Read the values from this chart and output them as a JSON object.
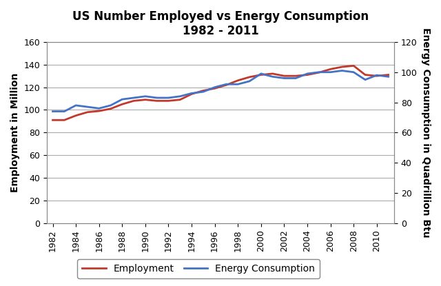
{
  "title": "US Number Employed vs Energy Consumption\n1982 - 2011",
  "ylabel_left": "Employment in Million",
  "ylabel_right": "Energy Consumption in Quadrillion Btu",
  "years": [
    1982,
    1983,
    1984,
    1985,
    1986,
    1987,
    1988,
    1989,
    1990,
    1991,
    1992,
    1993,
    1994,
    1995,
    1996,
    1997,
    1998,
    1999,
    2000,
    2001,
    2002,
    2003,
    2004,
    2005,
    2006,
    2007,
    2008,
    2009,
    2010,
    2011
  ],
  "employment": [
    91,
    91,
    95,
    98,
    99,
    101,
    105,
    108,
    109,
    108,
    108,
    109,
    114,
    117,
    119,
    122,
    126,
    129,
    131,
    132,
    130,
    130,
    131,
    133,
    136,
    138,
    139,
    131,
    130,
    131
  ],
  "energy": [
    74,
    74,
    78,
    77,
    76,
    78,
    82,
    83,
    84,
    83,
    83,
    84,
    86,
    87,
    90,
    92,
    92,
    94,
    99,
    97,
    96,
    96,
    99,
    100,
    100,
    101,
    100,
    95,
    98,
    97
  ],
  "employment_color": "#c0392b",
  "energy_color": "#4472c4",
  "ylim_left": [
    0,
    160
  ],
  "ylim_right": [
    0,
    120
  ],
  "yticks_left": [
    0,
    20,
    40,
    60,
    80,
    100,
    120,
    140,
    160
  ],
  "yticks_right": [
    0,
    20,
    40,
    60,
    80,
    100,
    120
  ],
  "xticks": [
    1982,
    1984,
    1986,
    1988,
    1990,
    1992,
    1994,
    1996,
    1998,
    2000,
    2002,
    2004,
    2006,
    2008,
    2010
  ],
  "line_width": 2.0,
  "background_color": "#ffffff",
  "grid_color": "#aaaaaa",
  "title_fontsize": 12,
  "axis_fontsize": 9,
  "label_fontsize": 10
}
